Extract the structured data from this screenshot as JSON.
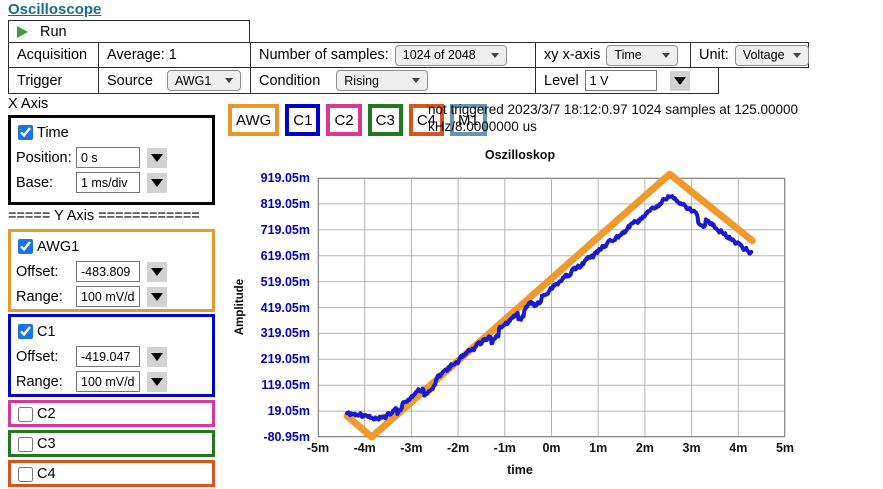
{
  "header": {
    "title": "Oscilloscope"
  },
  "control_table": {
    "run_label": "Run",
    "acquisition_label": "Acquisition",
    "average_label": "Average: 1",
    "samples_label": "Number of samples:",
    "samples_value": "1024 of 2048",
    "xy_label": "xy x-axis",
    "xy_value": "Time",
    "unit_label": "Unit:",
    "unit_value": "Voltage",
    "trigger_label": "Trigger",
    "source_label": "Source",
    "source_value": "AWG1",
    "condition_label": "Condition",
    "condition_value": "Rising",
    "level_label": "Level",
    "level_value": "1 V"
  },
  "scope_buttons": [
    {
      "label": "AWG",
      "color": "#e8992e"
    },
    {
      "label": "C1",
      "color": "#0000cc"
    },
    {
      "label": "C2",
      "color": "#d63a96"
    },
    {
      "label": "C3",
      "color": "#217821"
    },
    {
      "label": "C4",
      "color": "#d9531e"
    },
    {
      "label": "M1",
      "color": "#6b93b4"
    }
  ],
  "status_text": "not triggered 2023/3/7 18:12:0.97 1024 samples at 125.00000 kHz/8.0000000 us",
  "x_axis_panel": {
    "title": "X Axis",
    "time_label": "Time",
    "time_checked": true,
    "position_label": "Position:",
    "position_value": "0 s",
    "base_label": "Base:",
    "base_value": "1 ms/div"
  },
  "y_axis_panel": {
    "title": "===== Y Axis ============",
    "offset_label": "Offset:",
    "range_label": "Range:",
    "channels": [
      {
        "name": "AWG1",
        "checked": true,
        "color": "#e8992e",
        "offset": "-483.809",
        "range": "100 mV/div"
      },
      {
        "name": "C1",
        "checked": true,
        "color": "#0000cc",
        "offset": "-419.047",
        "range": "100 mV/div"
      },
      {
        "name": "C2",
        "checked": false,
        "color": "#d63a96"
      },
      {
        "name": "C3",
        "checked": false,
        "color": "#217821"
      },
      {
        "name": "C4",
        "checked": false,
        "color": "#d9531e"
      }
    ]
  },
  "chart_data": {
    "type": "line",
    "title": "Oszilloskop",
    "xlabel": "time",
    "ylabel": "Amplitude",
    "grid": true,
    "legend": "none",
    "xlim_ms": [
      -5,
      5
    ],
    "ylim_mv": [
      -80.95,
      919.05
    ],
    "x_ticks": [
      "-5m",
      "-4m",
      "-3m",
      "-2m",
      "-1m",
      "0m",
      "1m",
      "2m",
      "3m",
      "4m",
      "5m"
    ],
    "y_ticks": [
      "919.05m",
      "819.05m",
      "719.05m",
      "619.05m",
      "519.05m",
      "419.05m",
      "319.05m",
      "219.05m",
      "119.05m",
      "19.05m",
      "-80.95m"
    ],
    "series": [
      {
        "name": "AWG",
        "color": "#f09a2c",
        "width": 7,
        "noise_mv": 0,
        "seed": 1,
        "points_ms_mv": [
          [
            -4.38,
            0
          ],
          [
            -3.85,
            -81
          ],
          [
            2.53,
            934
          ],
          [
            4.3,
            677
          ]
        ]
      },
      {
        "name": "C1",
        "color": "#1a1acc",
        "width": 4,
        "noise_mv": 9,
        "seed": 11,
        "points_ms_mv": [
          [
            -4.38,
            15
          ],
          [
            -4.15,
            4
          ],
          [
            -3.9,
            -2
          ],
          [
            -3.55,
            -6
          ],
          [
            2.53,
            850
          ],
          [
            4.28,
            630
          ]
        ]
      }
    ]
  }
}
